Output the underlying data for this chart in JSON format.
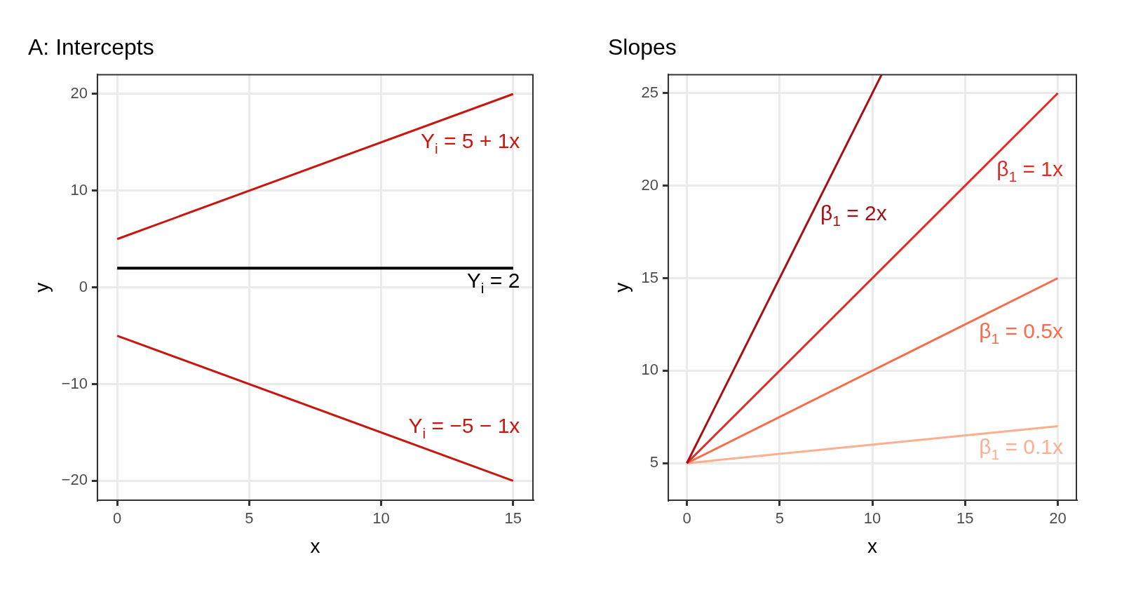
{
  "chart_data": [
    {
      "type": "line",
      "title": "A: Intercepts",
      "xlabel": "x",
      "ylabel": "y",
      "xlim": [
        -0.75,
        15.75
      ],
      "ylim": [
        -22,
        22
      ],
      "xticks": [
        0,
        5,
        10,
        15
      ],
      "yticks": [
        -20,
        -10,
        0,
        10,
        20
      ],
      "grid": true,
      "legend": false,
      "line_style": "solid",
      "marker": "none",
      "series": [
        {
          "name": "Y$_{i}$ = 5 + 1x",
          "color": "#c8170f",
          "x": [
            0,
            15
          ],
          "values": [
            5,
            20
          ]
        },
        {
          "name": "Y$_{i}$ = 2",
          "color": "#000000",
          "x": [
            0,
            15
          ],
          "values": [
            2,
            2
          ]
        },
        {
          "name": "Y$_{i}$ = −5 − 1x",
          "color": "#c8170f",
          "x": [
            0,
            15
          ],
          "values": [
            -5,
            -20
          ]
        }
      ]
    },
    {
      "type": "line",
      "title": "Slopes",
      "xlabel": "x",
      "ylabel": "y",
      "xlim": [
        -1,
        21
      ],
      "ylim": [
        3,
        26
      ],
      "xticks": [
        0,
        5,
        10,
        15,
        20
      ],
      "yticks": [
        5,
        10,
        15,
        20,
        25
      ],
      "grid": true,
      "legend": false,
      "line_style": "solid",
      "marker": "none",
      "series": [
        {
          "name": "β$_{1}$ = 2x",
          "color": "#a50f15",
          "x": [
            0,
            10.5
          ],
          "values": [
            5,
            26
          ]
        },
        {
          "name": "β$_{1}$ = 1x",
          "color": "#de2d26",
          "x": [
            0,
            20
          ],
          "values": [
            5,
            25
          ]
        },
        {
          "name": "β$_{1}$ = 0.5x",
          "color": "#fb6a4a",
          "x": [
            0,
            20
          ],
          "values": [
            5,
            15
          ]
        },
        {
          "name": "β$_{1}$ = 0.1x",
          "color": "#fcae91",
          "x": [
            0,
            20
          ],
          "values": [
            5,
            7
          ]
        }
      ]
    }
  ]
}
